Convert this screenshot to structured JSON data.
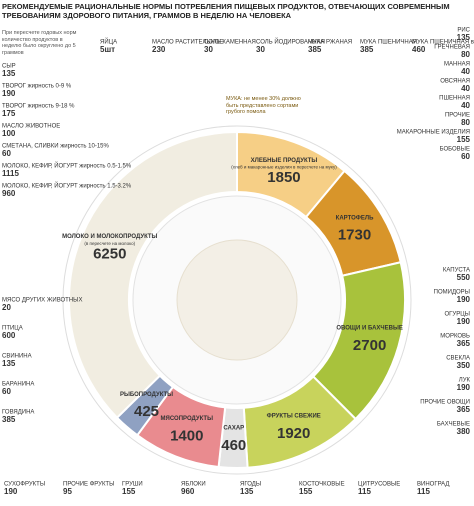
{
  "chart_data": {
    "type": "pie",
    "title": "РЕКОМЕНДУЕМЫЕ РАЦИОНАЛЬНЫЕ НОРМЫ ПОТРЕБЛЕНИЯ ПИЩЕВЫХ ПРОДУКТОВ, ОТВЕЧАЮЩИХ СОВРЕМЕННЫМ ТРЕБОВАНИЯМ ЗДОРОВОГО ПИТАНИЯ, ГРАММОВ В НЕДЕЛЮ НА ЧЕЛОВЕКА",
    "note": "При пересчете годовых норм количество продуктов в неделю было округлено до 5 граммов",
    "categories": [
      "ХЛЕБНЫЕ ПРОДУКТЫ",
      "КАРТОФЕЛЬ",
      "ОВОЩИ И БАХЧЕВЫЕ",
      "ФРУКТЫ СВЕЖИЕ",
      "САХАР",
      "МЯСОПРОДУКТЫ",
      "РЫБОПРОДУКТЫ",
      "МОЛОКО И МОЛОКОПРОДУКТЫ"
    ],
    "notes": [
      "(хлеб и макаронные изделия в пересчете на муку)",
      null,
      null,
      null,
      null,
      null,
      null,
      "(в пересчете на молоко)"
    ],
    "values": [
      1850,
      1730,
      2700,
      1920,
      460,
      1400,
      425,
      6250
    ],
    "colors": [
      "#f6cf86",
      "#d8952a",
      "#a8c23c",
      "#c8d35c",
      "#e4e4e4",
      "#e98b8f",
      "#8fa1c2",
      "#f1ede1"
    ],
    "flour_note": "МУКА: не менее 30% должно быть представлено сортами грубого помола"
  },
  "items": {
    "top": [
      {
        "name": "ЯЙЦА",
        "value": "5шт"
      },
      {
        "name": "МАСЛО РАСТИТЕЛЬНОЕ",
        "value": 230
      },
      {
        "name": "СОЛЬ КАМЕННАЯ",
        "value": 30
      },
      {
        "name": "СОЛЬ ЙОДИРОВАННАЯ",
        "value": 30
      },
      {
        "name": "МУКА РЖАНАЯ",
        "value": 385
      },
      {
        "name": "МУКА ПШЕНИЧНАЯ",
        "value": 385
      },
      {
        "name": "МУКА ПШЕНИЧНАЯ высокосортная",
        "value": 460
      }
    ],
    "right_top": [
      {
        "name": "РИС",
        "value": 135
      },
      {
        "name": "ГРЕЧНЕВАЯ",
        "value": 80
      },
      {
        "name": "МАННАЯ",
        "value": 40
      },
      {
        "name": "ОВСЯНАЯ",
        "value": 40
      },
      {
        "name": "ПШЕННАЯ",
        "value": 40
      },
      {
        "name": "ПРОЧИЕ",
        "value": 80
      },
      {
        "name": "МАКАРОННЫЕ ИЗДЕЛИЯ",
        "value": 155
      },
      {
        "name": "БОБОВЫЕ",
        "value": 60
      }
    ],
    "right_bottom": [
      {
        "name": "КАПУСТА",
        "value": 550
      },
      {
        "name": "ПОМИДОРЫ",
        "value": 190
      },
      {
        "name": "ОГУРЦЫ",
        "value": 190
      },
      {
        "name": "МОРКОВЬ",
        "value": 365
      },
      {
        "name": "СВЕКЛА",
        "value": 350
      },
      {
        "name": "ЛУК",
        "value": 190
      },
      {
        "name": "ПРОЧИЕ ОВОЩИ",
        "value": 365
      },
      {
        "name": "БАХЧЕВЫЕ",
        "value": 380
      }
    ],
    "left_top": [
      {
        "name": "СЫР",
        "value": 135
      },
      {
        "name": "ТВОРОГ жирность 0-9 %",
        "value": 190
      },
      {
        "name": "ТВОРОГ жирность 9-18 %",
        "value": 175
      },
      {
        "name": "МАСЛО ЖИВОТНОЕ",
        "value": 100
      },
      {
        "name": "СМЕТАНА, СЛИВКИ жирность 10-15%",
        "value": 60
      },
      {
        "name": "МОЛОКО, КЕФИР, ЙОГУРТ жирность 0.5-1.5%",
        "value": 1115
      },
      {
        "name": "МОЛОКО, КЕФИР, ЙОГУРТ жирность 1.5-3.2%",
        "value": 960
      }
    ],
    "left_bottom": [
      {
        "name": "МЯСО ДРУГИХ ЖИВОТНЫХ",
        "value": 20
      },
      {
        "name": "ПТИЦА",
        "value": 600
      },
      {
        "name": "СВИНИНА",
        "value": 135
      },
      {
        "name": "БАРАНИНА",
        "value": 60
      },
      {
        "name": "ГОВЯДИНА",
        "value": 385
      }
    ],
    "bottom": [
      {
        "name": "СУХОФРУКТЫ",
        "value": 190
      },
      {
        "name": "ПРОЧИЕ ФРУКТЫ",
        "value": 95
      },
      {
        "name": "ГРУШИ",
        "value": 155
      },
      {
        "name": "ЯБЛОКИ",
        "value": 960
      },
      {
        "name": "ЯГОДЫ",
        "value": 135
      },
      {
        "name": "КОСТОЧКОВЫЕ",
        "value": 155
      },
      {
        "name": "ЦИТРУСОВЫЕ",
        "value": 115
      },
      {
        "name": "ВИНОГРАД",
        "value": 115
      }
    ]
  }
}
